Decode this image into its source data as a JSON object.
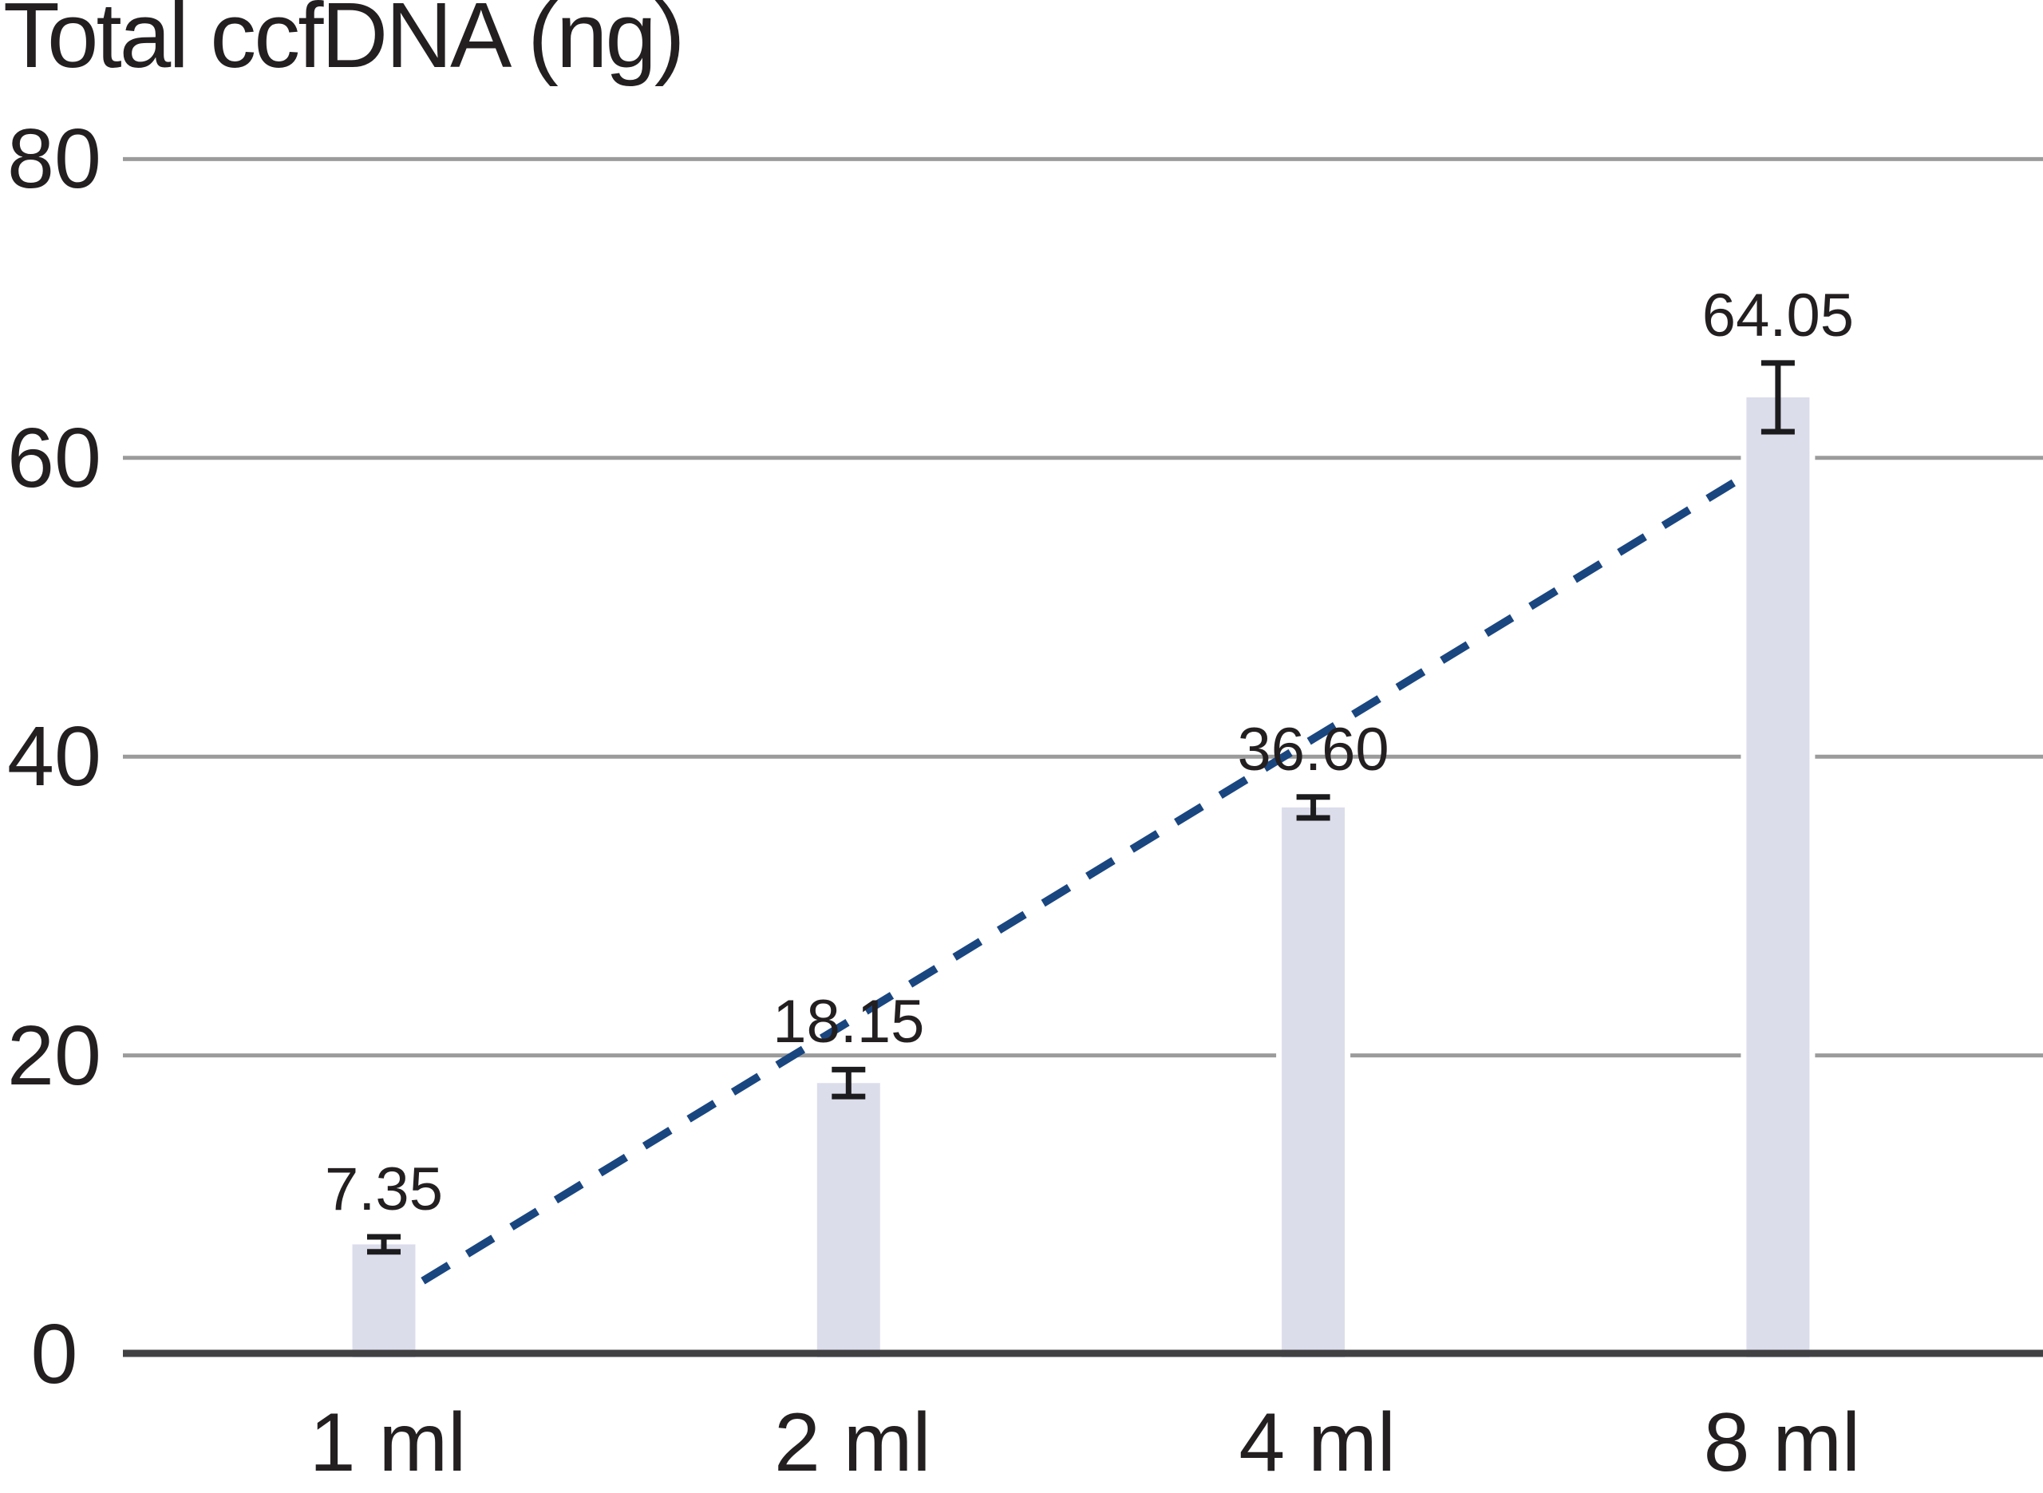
{
  "title": "Total ccfDNA (ng)",
  "chart_data": {
    "type": "bar",
    "title": "Total ccfDNA (ng)",
    "categories": [
      "1 ml",
      "2 ml",
      "4 ml",
      "8 ml"
    ],
    "values": [
      7.35,
      18.15,
      36.6,
      64.05
    ],
    "value_labels": [
      "7.35",
      "18.15",
      "36.60",
      "64.05"
    ],
    "error_bars_ng": [
      0.5,
      0.9,
      0.7,
      2.3
    ],
    "y_ticks": [
      0,
      20,
      40,
      60,
      80
    ],
    "ylim": [
      0,
      80
    ],
    "xlabel": "",
    "ylabel": "Total ccfDNA (ng)",
    "grid": "horizontal",
    "legend": "none",
    "trendline": {
      "style": "dashed",
      "color": "#1a4680",
      "from": {
        "pos": 0.084,
        "value": 4.9
      },
      "to": {
        "pos": 2.945,
        "value": 59.1
      }
    },
    "colors": {
      "bar": "#dcddeb",
      "grid": "#9b9b9b",
      "axis": "#414143",
      "error": "#1c1c1e",
      "text": "#231f20",
      "background": "#ffffff"
    }
  }
}
